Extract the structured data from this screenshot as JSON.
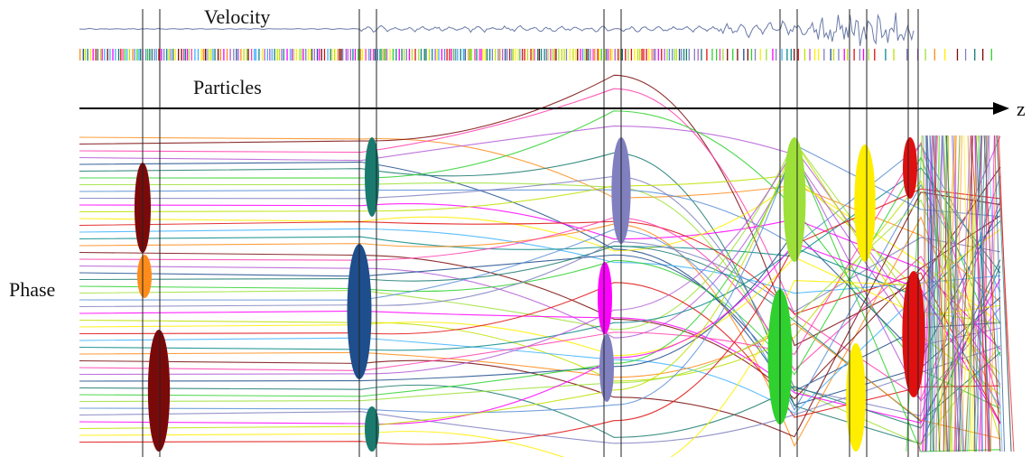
{
  "labels": {
    "velocity": "Velocity",
    "particles": "Particles",
    "phase": "Phase",
    "z_axis": "z"
  },
  "colors": {
    "axis": "#000000",
    "palette": [
      "#ff8c1a",
      "#7a0a0a",
      "#ff3fae",
      "#b45cd6",
      "#1f4e8c",
      "#1a7a6e",
      "#2fd12f",
      "#9ee03a",
      "#5b8fd6",
      "#8080c0",
      "#ff00ff",
      "#c0e000",
      "#ffee00",
      "#e01010",
      "#3fb3ff",
      "#0a8a8a"
    ]
  }
}
